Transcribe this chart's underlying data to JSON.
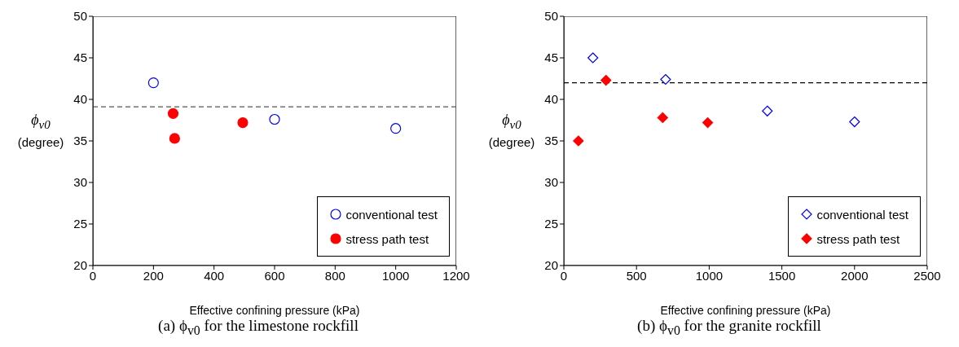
{
  "chart_data": [
    {
      "type": "scatter",
      "title": "(a) ϕ$_{v0}$ for the limestone rockfill",
      "xlabel": "Effective confining pressure (kPa)",
      "ylabel": "ϕ$_{v0}$ (degree)",
      "xlim": [
        0,
        1200
      ],
      "xticks": [
        0,
        200,
        400,
        600,
        800,
        1000,
        1200
      ],
      "ylim": [
        20,
        50
      ],
      "yticks": [
        20,
        25,
        30,
        35,
        40,
        45,
        50
      ],
      "grid": false,
      "legend": "bottom right",
      "marker": "circle",
      "series": [
        {
          "name": "conventional test",
          "color": "#0000ff",
          "x": [
            200,
            600,
            1000
          ],
          "values": [
            42,
            37.6,
            36.5
          ]
        },
        {
          "name": "stress path test",
          "color": "#ff0000",
          "x": [
            265,
            270,
            495
          ],
          "values": [
            38.3,
            35.3,
            37.2
          ]
        }
      ],
      "ref_lines": [
        {
          "axis": "y",
          "value": 39.1,
          "color": "#555555",
          "line_style": "dashed"
        }
      ]
    },
    {
      "type": "scatter",
      "title": "(b) ϕ$_{v0}$ for the granite rockfill",
      "xlabel": "Effective confining pressure (kPa)",
      "ylabel": "ϕ$_{v0}$ (degree)",
      "xlim": [
        0,
        2500
      ],
      "xticks": [
        0,
        500,
        1000,
        1500,
        2000,
        2500
      ],
      "ylim": [
        20,
        50
      ],
      "yticks": [
        20,
        25,
        30,
        35,
        40,
        45,
        50
      ],
      "grid": false,
      "legend": "bottom right",
      "marker": "diamond",
      "series": [
        {
          "name": "conventional test",
          "color": "#0000ff",
          "x": [
            200,
            700,
            1400,
            2000
          ],
          "values": [
            45,
            42.4,
            38.6,
            37.3
          ]
        },
        {
          "name": "stress path test",
          "color": "#ff0000",
          "x": [
            100,
            290,
            680,
            990
          ],
          "values": [
            35,
            42.3,
            37.8,
            37.2
          ]
        }
      ],
      "ref_lines": [
        {
          "axis": "y",
          "value": 42,
          "color": "#000000",
          "line_style": "dashed"
        }
      ]
    }
  ]
}
